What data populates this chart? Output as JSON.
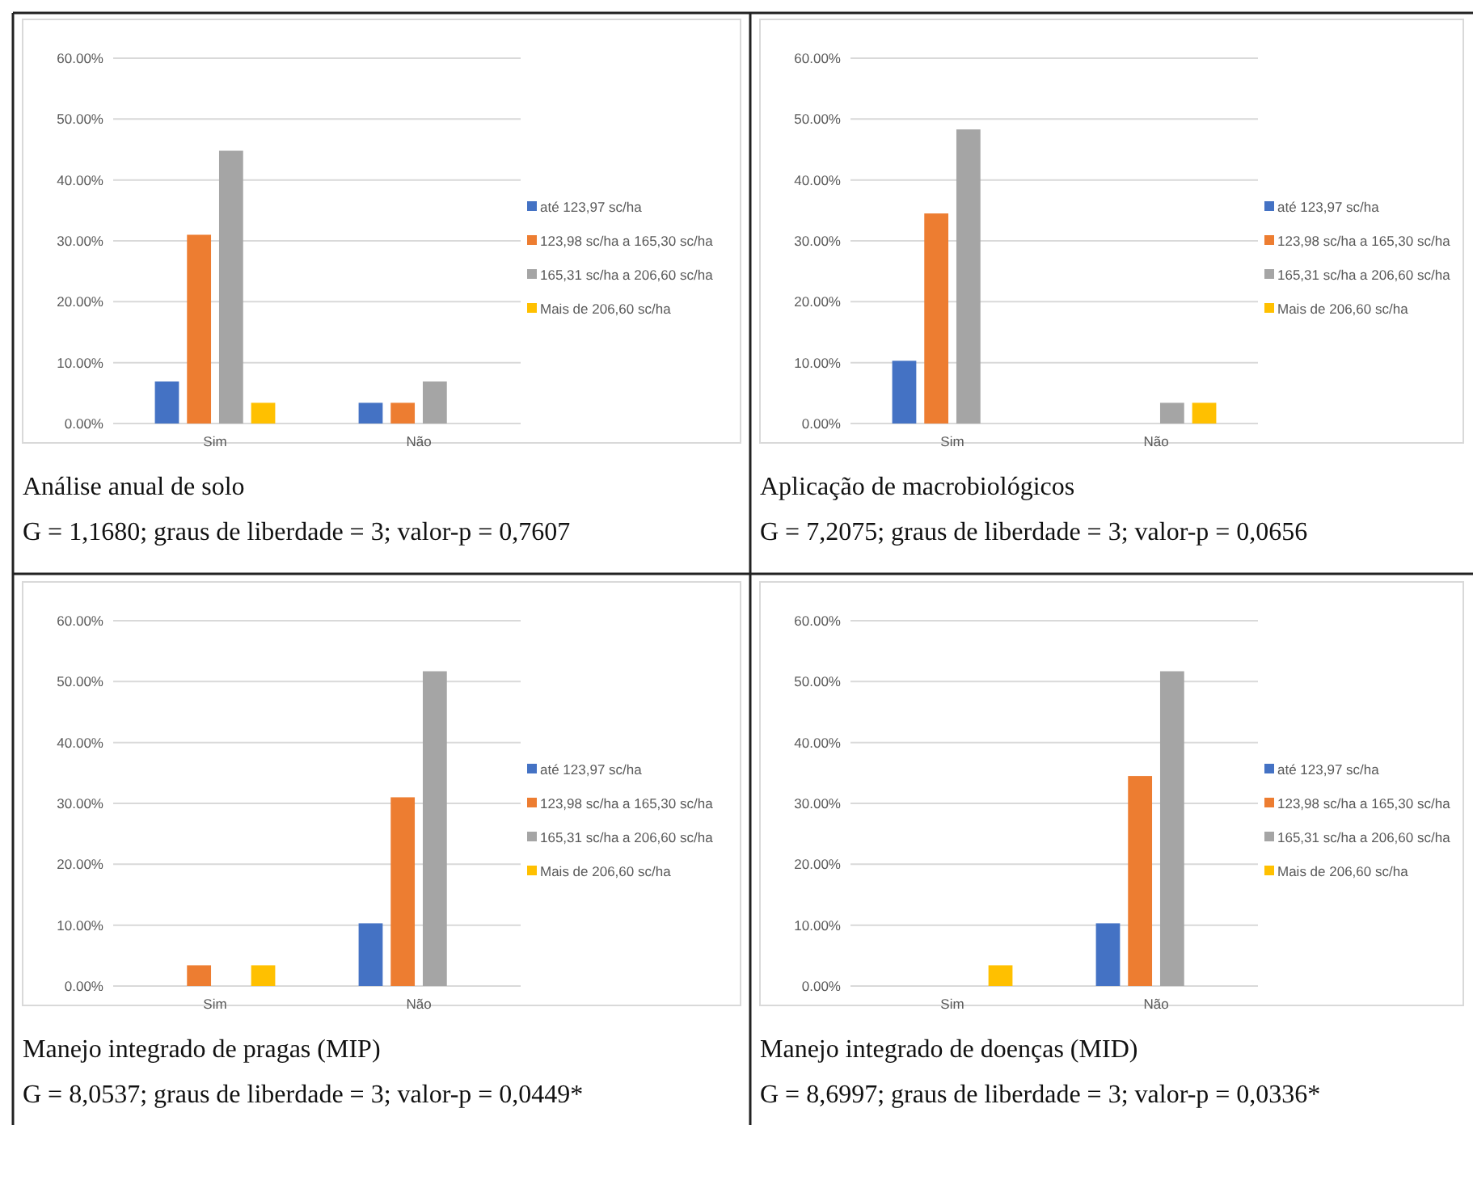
{
  "chart_data": [
    {
      "type": "bar",
      "title": "Análise anual de solo",
      "subtitle": "G = 1,1680; graus de liberdade = 3; valor-p = 0,7607",
      "categories": [
        "Sim",
        "Não"
      ],
      "series": [
        {
          "name": "até 123,97 sc/ha",
          "color": "#4472c4",
          "values": [
            6.9,
            3.4
          ]
        },
        {
          "name": "123,98 sc/ha a 165,30 sc/ha",
          "color": "#ed7d31",
          "values": [
            31.0,
            3.4
          ]
        },
        {
          "name": "165,31 sc/ha a 206,60 sc/ha",
          "color": "#a5a5a5",
          "values": [
            44.8,
            6.9
          ]
        },
        {
          "name": "Mais de 206,60 sc/ha",
          "color": "#ffc000",
          "values": [
            3.4,
            0
          ]
        }
      ],
      "ylim": [
        0,
        60
      ],
      "yticks": [
        {
          "value": 0,
          "label": "0.00%"
        },
        {
          "value": 10,
          "label": "10.00%"
        },
        {
          "value": 20,
          "label": "20.00%"
        },
        {
          "value": 30,
          "label": "30.00%"
        },
        {
          "value": 40,
          "label": "40.00%"
        },
        {
          "value": 50,
          "label": "50.00%"
        },
        {
          "value": 60,
          "label": "60.00%"
        }
      ],
      "grid": "y",
      "legend": "right"
    },
    {
      "type": "bar",
      "title": "Aplicação de macrobiológicos",
      "subtitle": "G = 7,2075; graus de liberdade = 3; valor-p = 0,0656",
      "categories": [
        "Sim",
        "Não"
      ],
      "series": [
        {
          "name": "até 123,97 sc/ha",
          "color": "#4472c4",
          "values": [
            10.3,
            0
          ]
        },
        {
          "name": "123,98 sc/ha a 165,30 sc/ha",
          "color": "#ed7d31",
          "values": [
            34.5,
            0
          ]
        },
        {
          "name": "165,31 sc/ha a 206,60 sc/ha",
          "color": "#a5a5a5",
          "values": [
            48.3,
            3.4
          ]
        },
        {
          "name": "Mais de 206,60 sc/ha",
          "color": "#ffc000",
          "values": [
            0,
            3.4
          ]
        }
      ],
      "ylim": [
        0,
        60
      ],
      "yticks": [
        {
          "value": 0,
          "label": "0.00%"
        },
        {
          "value": 10,
          "label": "10.00%"
        },
        {
          "value": 20,
          "label": "20.00%"
        },
        {
          "value": 30,
          "label": "30.00%"
        },
        {
          "value": 40,
          "label": "40.00%"
        },
        {
          "value": 50,
          "label": "50.00%"
        },
        {
          "value": 60,
          "label": "60.00%"
        }
      ],
      "grid": "y",
      "legend": "right"
    },
    {
      "type": "bar",
      "title": "Manejo integrado de pragas (MIP)",
      "subtitle": "G = 8,0537; graus de liberdade = 3; valor-p = 0,0449*",
      "categories": [
        "Sim",
        "Não"
      ],
      "series": [
        {
          "name": "até 123,97 sc/ha",
          "color": "#4472c4",
          "values": [
            0,
            10.3
          ]
        },
        {
          "name": "123,98 sc/ha a 165,30 sc/ha",
          "color": "#ed7d31",
          "values": [
            3.4,
            31.0
          ]
        },
        {
          "name": "165,31 sc/ha a 206,60 sc/ha",
          "color": "#a5a5a5",
          "values": [
            0,
            51.7
          ]
        },
        {
          "name": "Mais de 206,60 sc/ha",
          "color": "#ffc000",
          "values": [
            3.4,
            0
          ]
        }
      ],
      "ylim": [
        0,
        60
      ],
      "yticks": [
        {
          "value": 0,
          "label": "0.00%"
        },
        {
          "value": 10,
          "label": "10.00%"
        },
        {
          "value": 20,
          "label": "20.00%"
        },
        {
          "value": 30,
          "label": "30.00%"
        },
        {
          "value": 40,
          "label": "40.00%"
        },
        {
          "value": 50,
          "label": "50.00%"
        },
        {
          "value": 60,
          "label": "60.00%"
        }
      ],
      "grid": "y",
      "legend": "right"
    },
    {
      "type": "bar",
      "title": "Manejo integrado de doenças (MID)",
      "subtitle": "G = 8,6997; graus de liberdade = 3; valor-p = 0,0336*",
      "categories": [
        "Sim",
        "Não"
      ],
      "series": [
        {
          "name": "até 123,97 sc/ha",
          "color": "#4472c4",
          "values": [
            0,
            10.3
          ]
        },
        {
          "name": "123,98 sc/ha a 165,30 sc/ha",
          "color": "#ed7d31",
          "values": [
            0,
            34.5
          ]
        },
        {
          "name": "165,31 sc/ha a 206,60 sc/ha",
          "color": "#a5a5a5",
          "values": [
            0,
            51.7
          ]
        },
        {
          "name": "Mais de 206,60 sc/ha",
          "color": "#ffc000",
          "values": [
            3.4,
            0
          ]
        }
      ],
      "ylim": [
        0,
        60
      ],
      "yticks": [
        {
          "value": 0,
          "label": "0.00%"
        },
        {
          "value": 10,
          "label": "10.00%"
        },
        {
          "value": 20,
          "label": "20.00%"
        },
        {
          "value": 30,
          "label": "30.00%"
        },
        {
          "value": 40,
          "label": "40.00%"
        },
        {
          "value": 50,
          "label": "50.00%"
        },
        {
          "value": 60,
          "label": "60.00%"
        }
      ],
      "grid": "y",
      "legend": "right"
    }
  ]
}
